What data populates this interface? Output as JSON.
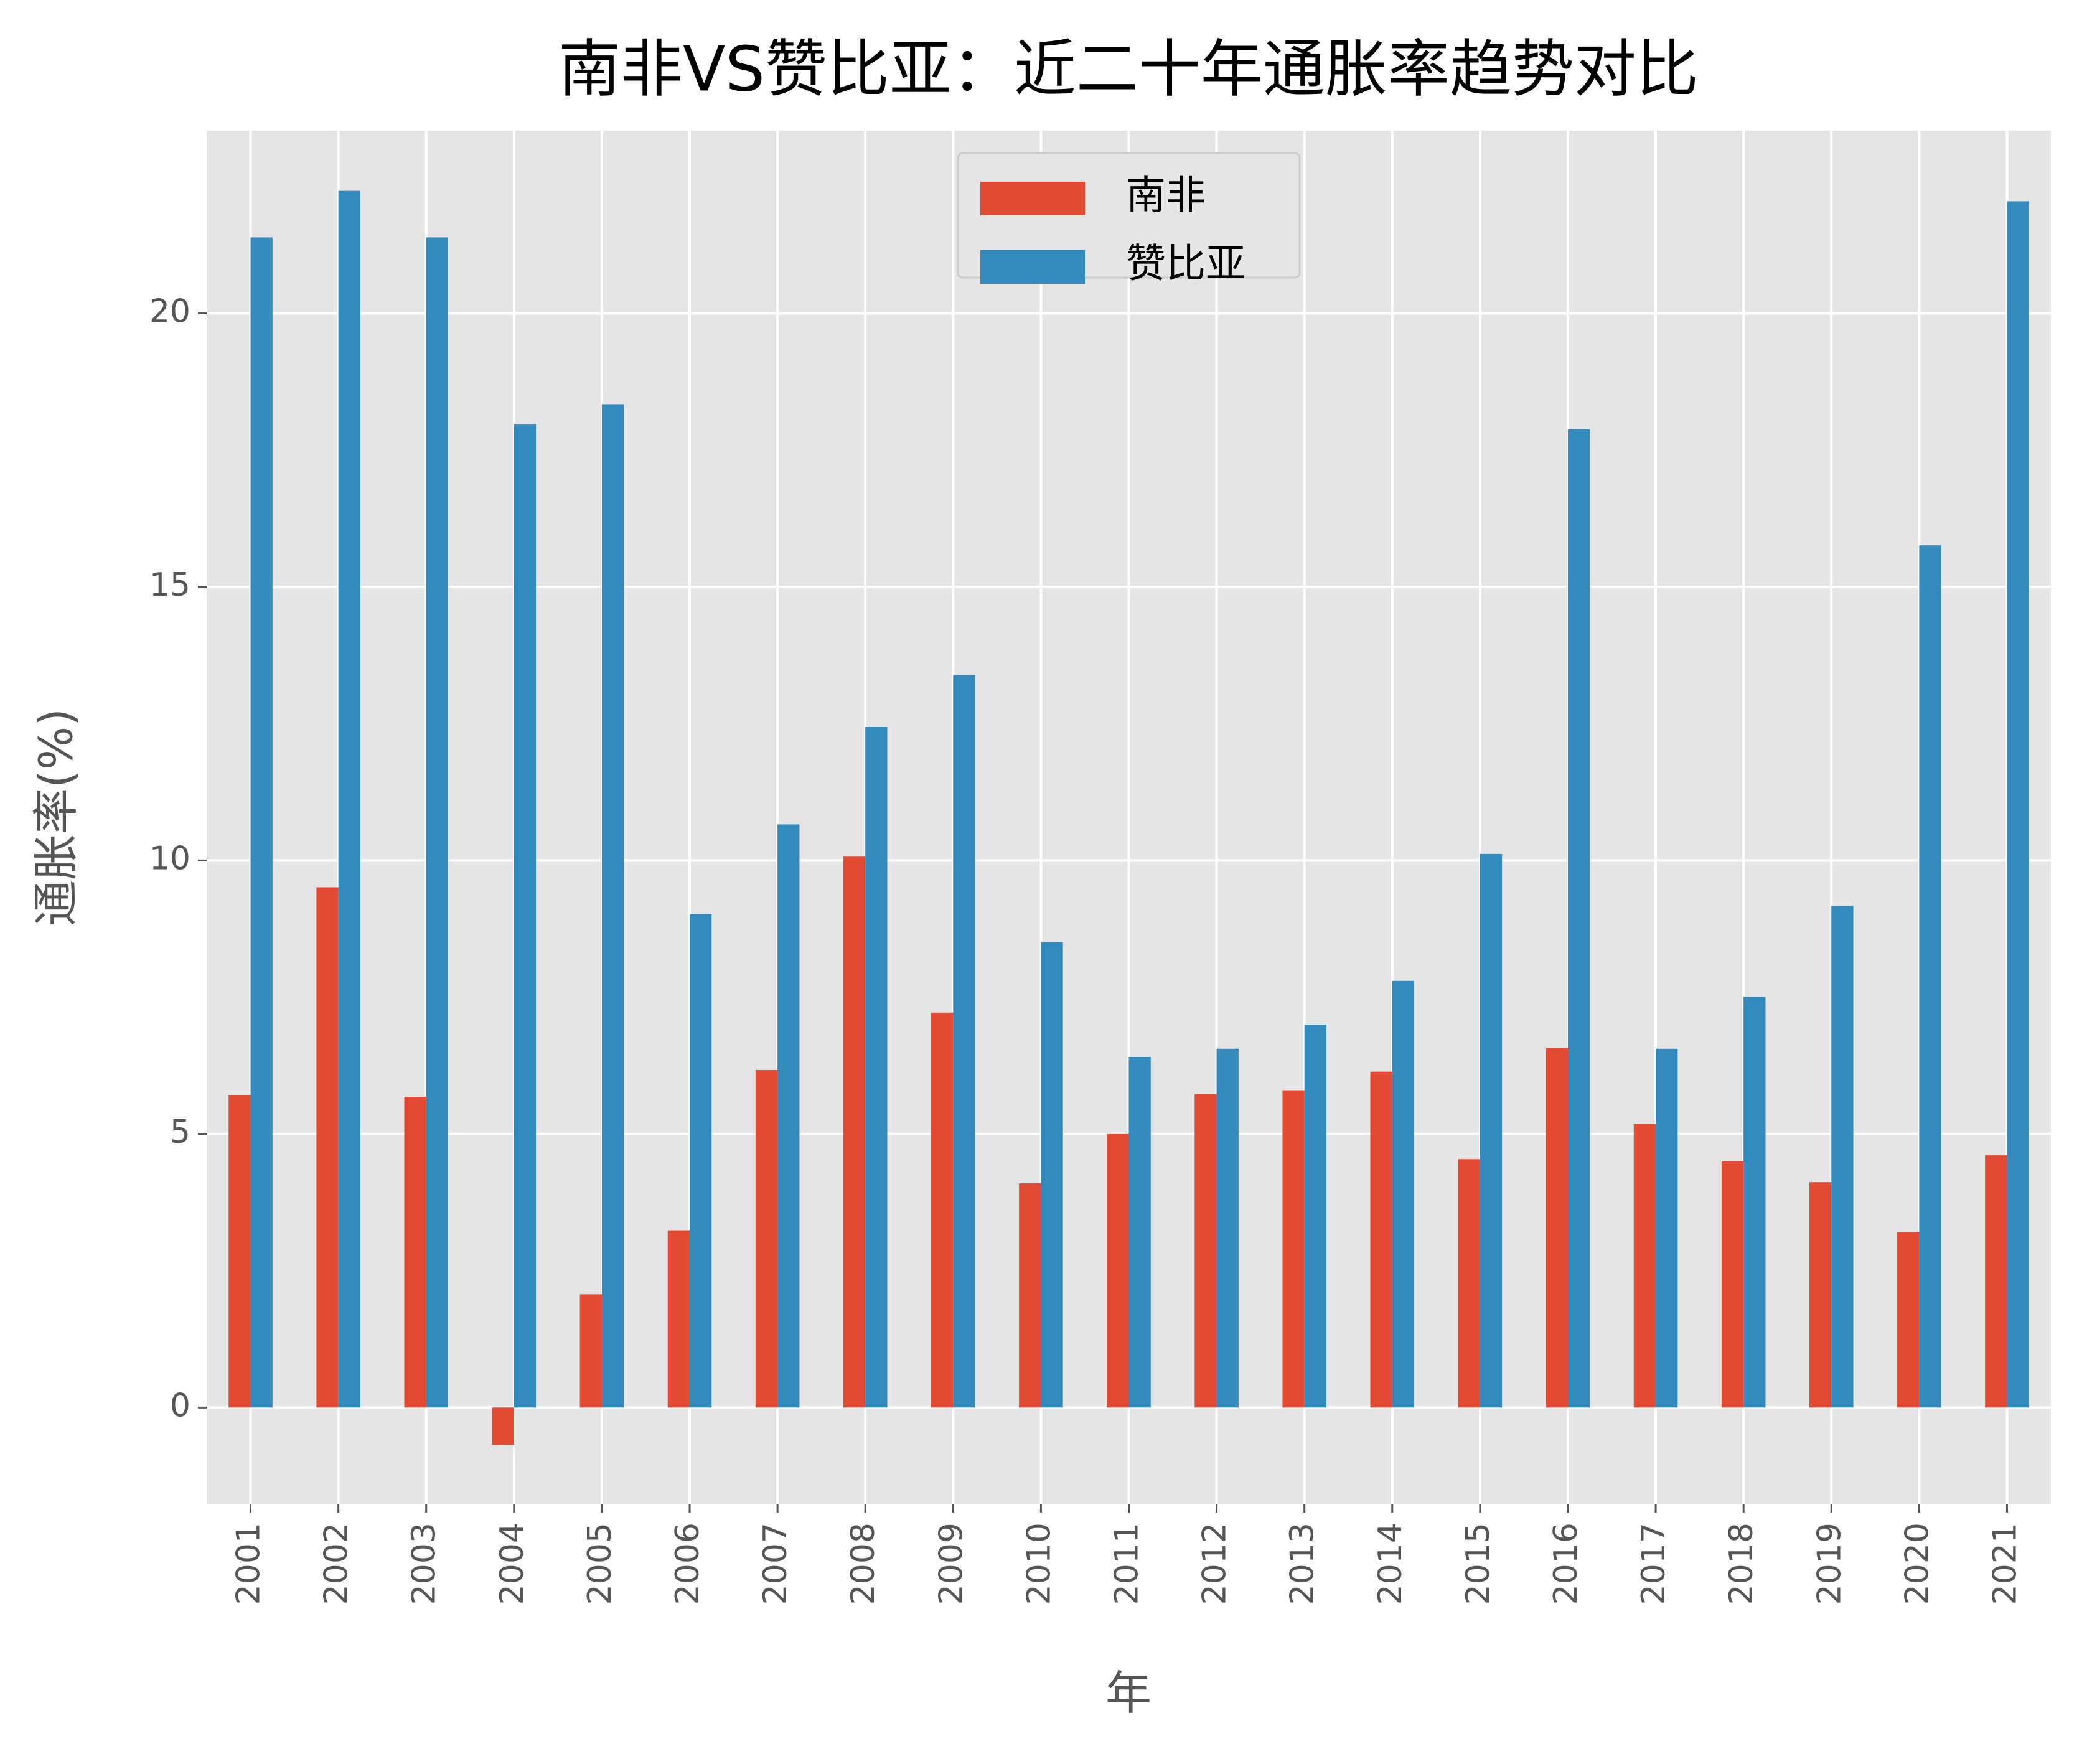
{
  "chart_data": {
    "type": "bar",
    "title": "南非VS赞比亚：近二十年通胀率趋势对比",
    "xlabel": "年",
    "ylabel": "通胀率(%)",
    "categories": [
      "2001",
      "2002",
      "2003",
      "2004",
      "2005",
      "2006",
      "2007",
      "2008",
      "2009",
      "2010",
      "2011",
      "2012",
      "2013",
      "2014",
      "2015",
      "2016",
      "2017",
      "2018",
      "2019",
      "2020",
      "2021"
    ],
    "series": [
      {
        "name": "南非",
        "color": "#e24a33",
        "values": [
          5.71,
          9.51,
          5.68,
          -0.68,
          2.07,
          3.24,
          6.17,
          10.07,
          7.22,
          4.1,
          5.0,
          5.73,
          5.8,
          6.14,
          4.54,
          6.57,
          5.18,
          4.5,
          4.12,
          3.21,
          4.61
        ]
      },
      {
        "name": "赞比亚",
        "color": "#348abd",
        "values": [
          21.39,
          22.24,
          21.39,
          17.98,
          18.34,
          9.02,
          10.66,
          12.44,
          13.39,
          8.51,
          6.41,
          6.56,
          7.0,
          7.8,
          10.12,
          17.88,
          6.56,
          7.51,
          9.17,
          15.76,
          22.05
        ]
      }
    ],
    "ylim": [
      -1.76,
      23.34
    ],
    "yticks": [
      0,
      5,
      10,
      15,
      20
    ],
    "grid": true,
    "legend": "upper center"
  }
}
